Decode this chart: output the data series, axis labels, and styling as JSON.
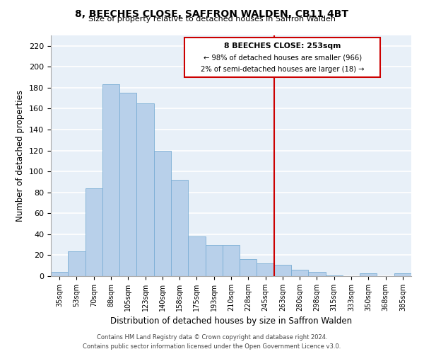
{
  "title": "8, BEECHES CLOSE, SAFFRON WALDEN, CB11 4BT",
  "subtitle": "Size of property relative to detached houses in Saffron Walden",
  "xlabel": "Distribution of detached houses by size in Saffron Walden",
  "ylabel": "Number of detached properties",
  "bar_labels": [
    "35sqm",
    "53sqm",
    "70sqm",
    "88sqm",
    "105sqm",
    "123sqm",
    "140sqm",
    "158sqm",
    "175sqm",
    "193sqm",
    "210sqm",
    "228sqm",
    "245sqm",
    "263sqm",
    "280sqm",
    "298sqm",
    "315sqm",
    "333sqm",
    "350sqm",
    "368sqm",
    "385sqm"
  ],
  "bar_values": [
    4,
    24,
    84,
    183,
    175,
    165,
    120,
    92,
    38,
    30,
    30,
    16,
    12,
    11,
    6,
    4,
    1,
    0,
    3,
    0,
    3
  ],
  "bar_color": "#b8d0ea",
  "bar_edge_color": "#7aadd4",
  "vline_x_index": 13,
  "vline_color": "#cc0000",
  "annotation_title": "8 BEECHES CLOSE: 253sqm",
  "annotation_line1": "← 98% of detached houses are smaller (966)",
  "annotation_line2": "2% of semi-detached houses are larger (18) →",
  "annotation_box_color": "#ffffff",
  "annotation_box_edge": "#cc0000",
  "ylim": [
    0,
    230
  ],
  "yticks": [
    0,
    20,
    40,
    60,
    80,
    100,
    120,
    140,
    160,
    180,
    200,
    220
  ],
  "footnote1": "Contains HM Land Registry data © Crown copyright and database right 2024.",
  "footnote2": "Contains public sector information licensed under the Open Government Licence v3.0.",
  "bg_color": "#e8f0f8",
  "grid_color": "#ffffff"
}
